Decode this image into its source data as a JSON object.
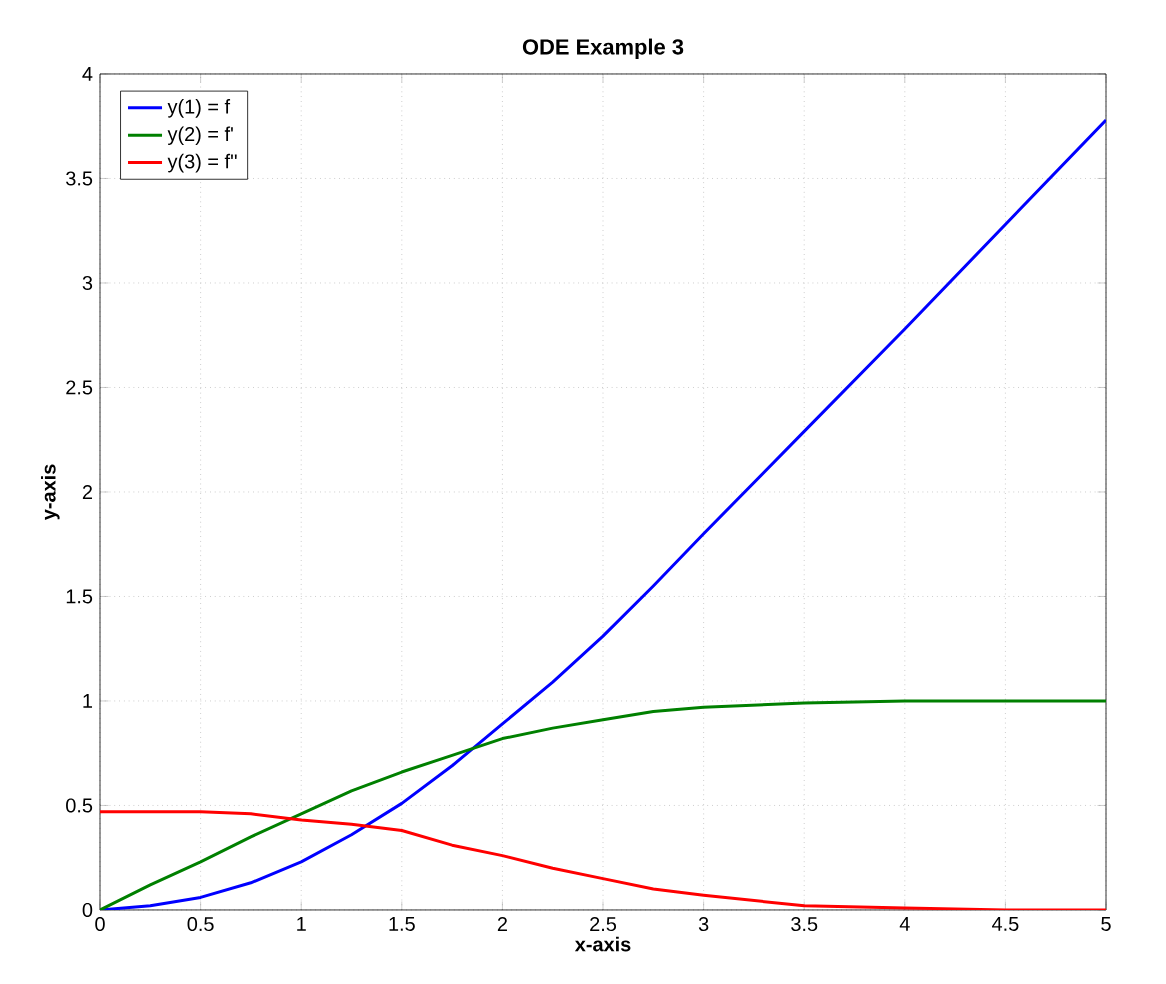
{
  "chart_data": {
    "type": "line",
    "title": "ODE Example 3",
    "xlabel": "x-axis",
    "ylabel": "y-axis",
    "x": [
      0,
      0.25,
      0.5,
      0.75,
      1,
      1.25,
      1.5,
      1.75,
      2,
      2.25,
      2.5,
      2.75,
      3,
      3.5,
      4,
      4.5,
      5
    ],
    "series": [
      {
        "name": "y(1) = f",
        "color": "#0000ff",
        "values": [
          0,
          0.02,
          0.06,
          0.13,
          0.23,
          0.36,
          0.51,
          0.69,
          0.89,
          1.09,
          1.31,
          1.55,
          1.8,
          2.29,
          2.78,
          3.28,
          3.78
        ]
      },
      {
        "name": "y(2) = f'",
        "color": "#008000",
        "values": [
          0,
          0.12,
          0.23,
          0.35,
          0.46,
          0.57,
          0.66,
          0.74,
          0.82,
          0.87,
          0.91,
          0.95,
          0.97,
          0.99,
          1.0,
          1.0,
          1.0
        ]
      },
      {
        "name": "y(3) = f''",
        "color": "#ff0000",
        "values": [
          0.47,
          0.47,
          0.47,
          0.46,
          0.43,
          0.41,
          0.38,
          0.31,
          0.26,
          0.2,
          0.15,
          0.1,
          0.07,
          0.02,
          0.01,
          0.0,
          0.0
        ]
      }
    ],
    "xlim": [
      0,
      5
    ],
    "ylim": [
      0,
      4
    ],
    "xticks": [
      0,
      0.5,
      1,
      1.5,
      2,
      2.5,
      3,
      3.5,
      4,
      4.5,
      5
    ],
    "yticks": [
      0,
      0.5,
      1,
      1.5,
      2,
      2.5,
      3,
      3.5,
      4
    ],
    "grid": true,
    "legend": "top left",
    "marker": "none",
    "line_style": "solid"
  }
}
